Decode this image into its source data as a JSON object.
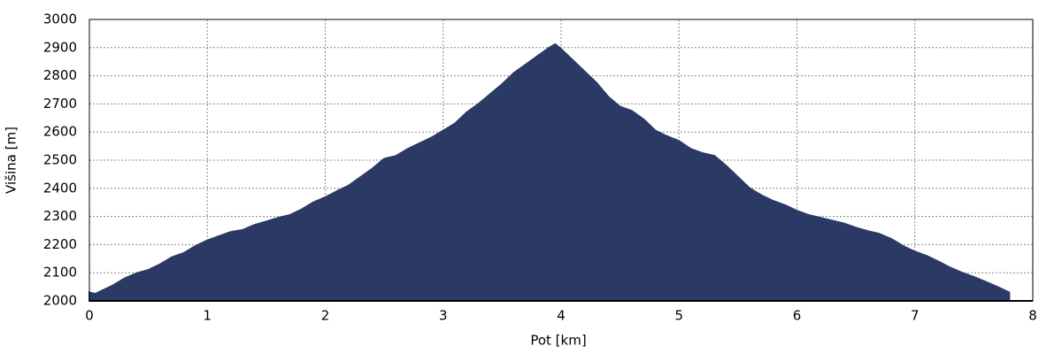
{
  "chart_data": {
    "type": "area",
    "x_label": "Pot [km]",
    "y_label": "Višina [m]",
    "x": [
      0,
      0.05,
      0.2,
      0.3,
      0.4,
      0.5,
      0.6,
      0.7,
      0.8,
      0.9,
      1.0,
      1.1,
      1.2,
      1.3,
      1.4,
      1.5,
      1.6,
      1.7,
      1.8,
      1.9,
      2.0,
      2.1,
      2.2,
      2.3,
      2.4,
      2.5,
      2.6,
      2.7,
      2.8,
      2.9,
      3.0,
      3.1,
      3.2,
      3.3,
      3.4,
      3.5,
      3.6,
      3.7,
      3.8,
      3.9,
      3.95,
      4.0,
      4.1,
      4.2,
      4.3,
      4.4,
      4.5,
      4.6,
      4.7,
      4.8,
      4.9,
      5.0,
      5.1,
      5.2,
      5.3,
      5.4,
      5.5,
      5.6,
      5.7,
      5.8,
      5.9,
      6.0,
      6.1,
      6.2,
      6.3,
      6.4,
      6.5,
      6.6,
      6.7,
      6.8,
      6.9,
      7.0,
      7.1,
      7.2,
      7.3,
      7.4,
      7.5,
      7.6,
      7.7,
      7.8
    ],
    "values": [
      2030,
      2025,
      2055,
      2080,
      2098,
      2110,
      2130,
      2155,
      2170,
      2195,
      2215,
      2230,
      2245,
      2252,
      2270,
      2282,
      2295,
      2305,
      2325,
      2350,
      2368,
      2390,
      2410,
      2440,
      2470,
      2505,
      2515,
      2540,
      2560,
      2580,
      2605,
      2630,
      2670,
      2700,
      2735,
      2770,
      2810,
      2840,
      2870,
      2900,
      2912,
      2895,
      2855,
      2815,
      2775,
      2725,
      2690,
      2675,
      2645,
      2605,
      2585,
      2568,
      2540,
      2525,
      2515,
      2480,
      2440,
      2400,
      2375,
      2355,
      2340,
      2320,
      2305,
      2295,
      2285,
      2275,
      2260,
      2248,
      2238,
      2220,
      2195,
      2175,
      2160,
      2140,
      2118,
      2100,
      2085,
      2068,
      2050,
      2030
    ],
    "color": "#2b3a64",
    "xlim": [
      0,
      8
    ],
    "xticks": [
      0,
      1,
      2,
      3,
      4,
      5,
      6,
      7,
      8
    ],
    "ylim": [
      2000,
      3000
    ],
    "yticks": [
      2000,
      2100,
      2200,
      2300,
      2400,
      2500,
      2600,
      2700,
      2800,
      2900,
      3000
    ],
    "grid": true
  }
}
